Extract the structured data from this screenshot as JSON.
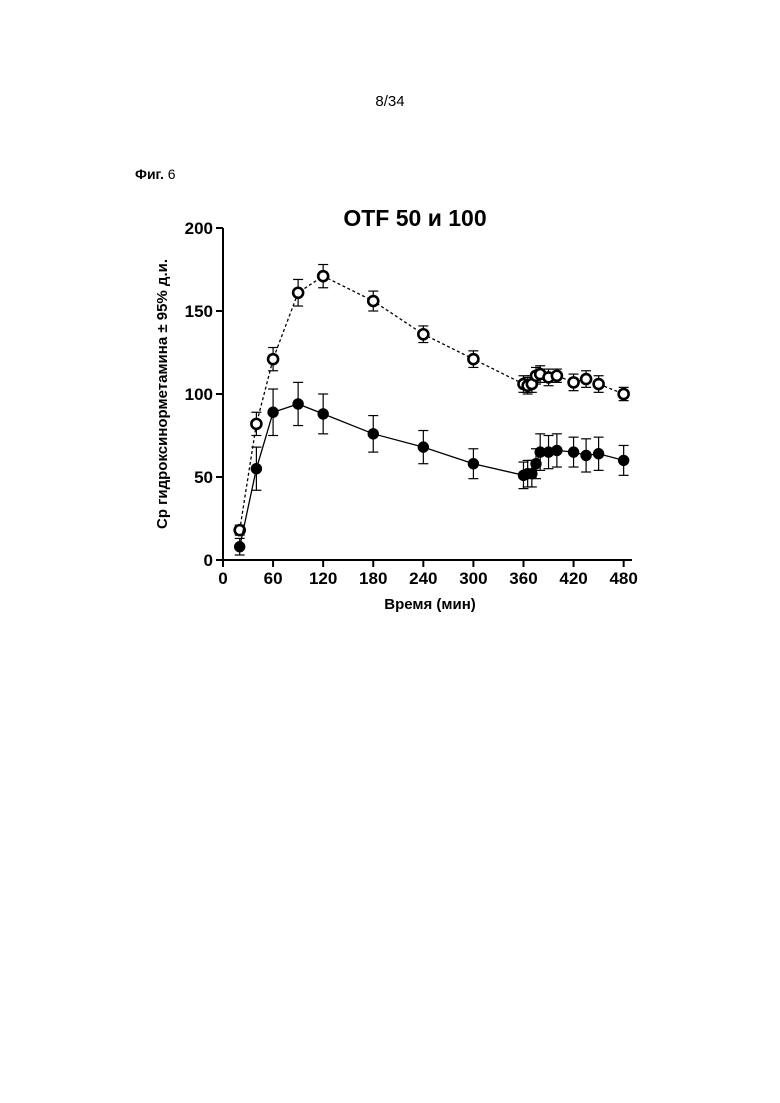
{
  "page": {
    "page_number": "8/34",
    "figure_label_word": "Фиг.",
    "figure_label_number": "6"
  },
  "chart_data": {
    "type": "line",
    "title": "OTF 50 и 100",
    "xlabel": "Время (мин)",
    "ylabel": "Ср гидроксинорметамина ± 95% д.и.",
    "xlim": [
      0,
      490
    ],
    "ylim": [
      0,
      200
    ],
    "x_ticks": [
      0,
      60,
      120,
      180,
      240,
      300,
      360,
      420,
      480
    ],
    "y_ticks": [
      0,
      50,
      100,
      150,
      200
    ],
    "grid": false,
    "legend": "none",
    "series": [
      {
        "marker": "open-circle",
        "line_style": "dashed",
        "color": "#000000",
        "points": [
          {
            "x": 20,
            "y": 18,
            "err": 3
          },
          {
            "x": 40,
            "y": 82,
            "err": 7
          },
          {
            "x": 60,
            "y": 121,
            "err": 7
          },
          {
            "x": 90,
            "y": 161,
            "err": 8
          },
          {
            "x": 120,
            "y": 171,
            "err": 7
          },
          {
            "x": 180,
            "y": 156,
            "err": 6
          },
          {
            "x": 240,
            "y": 136,
            "err": 5
          },
          {
            "x": 300,
            "y": 121,
            "err": 5
          },
          {
            "x": 360,
            "y": 106,
            "err": 5
          },
          {
            "x": 365,
            "y": 105,
            "err": 5
          },
          {
            "x": 370,
            "y": 106,
            "err": 5
          },
          {
            "x": 375,
            "y": 111,
            "err": 5
          },
          {
            "x": 380,
            "y": 112,
            "err": 5
          },
          {
            "x": 390,
            "y": 110,
            "err": 5
          },
          {
            "x": 400,
            "y": 111,
            "err": 4
          },
          {
            "x": 420,
            "y": 107,
            "err": 5
          },
          {
            "x": 435,
            "y": 109,
            "err": 5
          },
          {
            "x": 450,
            "y": 106,
            "err": 5
          },
          {
            "x": 480,
            "y": 100,
            "err": 4
          }
        ]
      },
      {
        "marker": "filled-circle",
        "line_style": "solid",
        "color": "#000000",
        "points": [
          {
            "x": 20,
            "y": 8,
            "err": 5
          },
          {
            "x": 40,
            "y": 55,
            "err": 13
          },
          {
            "x": 60,
            "y": 89,
            "err": 14
          },
          {
            "x": 90,
            "y": 94,
            "err": 13
          },
          {
            "x": 120,
            "y": 88,
            "err": 12
          },
          {
            "x": 180,
            "y": 76,
            "err": 11
          },
          {
            "x": 240,
            "y": 68,
            "err": 10
          },
          {
            "x": 300,
            "y": 58,
            "err": 9
          },
          {
            "x": 360,
            "y": 51,
            "err": 8
          },
          {
            "x": 365,
            "y": 52,
            "err": 8
          },
          {
            "x": 370,
            "y": 52,
            "err": 8
          },
          {
            "x": 375,
            "y": 58,
            "err": 9
          },
          {
            "x": 380,
            "y": 65,
            "err": 11
          },
          {
            "x": 390,
            "y": 65,
            "err": 10
          },
          {
            "x": 400,
            "y": 66,
            "err": 10
          },
          {
            "x": 420,
            "y": 65,
            "err": 9
          },
          {
            "x": 435,
            "y": 63,
            "err": 10
          },
          {
            "x": 450,
            "y": 64,
            "err": 10
          },
          {
            "x": 480,
            "y": 60,
            "err": 9
          }
        ]
      }
    ]
  }
}
